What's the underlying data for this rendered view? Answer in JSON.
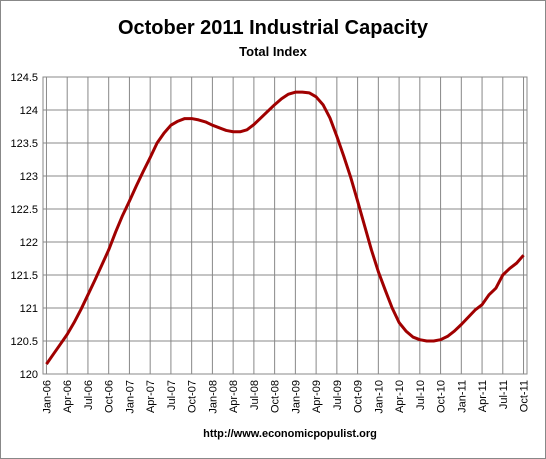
{
  "chart_data": {
    "type": "line",
    "title": "October 2011 Industrial Capacity",
    "subtitle": "Total Index",
    "source": "http://www.economicpopulist.org",
    "categories": [
      "Jan-06",
      null,
      null,
      "Apr-06",
      null,
      null,
      "Jul-06",
      null,
      null,
      "Oct-06",
      null,
      null,
      "Jan-07",
      null,
      null,
      "Apr-07",
      null,
      null,
      "Jul-07",
      null,
      null,
      "Oct-07",
      null,
      null,
      "Jan-08",
      null,
      null,
      "Apr-08",
      null,
      null,
      "Jul-08",
      null,
      null,
      "Oct-08",
      null,
      null,
      "Jan-09",
      null,
      null,
      "Apr-09",
      null,
      null,
      "Jul-09",
      null,
      null,
      "Oct-09",
      null,
      null,
      "Jan-10",
      null,
      null,
      "Apr-10",
      null,
      null,
      "Jul-10",
      null,
      null,
      "Oct-10",
      null,
      null,
      "Jan-11",
      null,
      null,
      "Apr-11",
      null,
      null,
      "Jul-11",
      null,
      null,
      "Oct-11"
    ],
    "values": [
      120.15,
      120.3,
      120.45,
      120.6,
      120.78,
      120.98,
      121.2,
      121.42,
      121.65,
      121.88,
      122.15,
      122.4,
      122.62,
      122.85,
      123.07,
      123.28,
      123.5,
      123.65,
      123.77,
      123.83,
      123.87,
      123.87,
      123.85,
      123.82,
      123.77,
      123.73,
      123.69,
      123.67,
      123.67,
      123.7,
      123.78,
      123.88,
      123.98,
      124.08,
      124.17,
      124.24,
      124.27,
      124.27,
      124.26,
      124.2,
      124.08,
      123.88,
      123.6,
      123.3,
      122.98,
      122.62,
      122.25,
      121.88,
      121.55,
      121.27,
      121.0,
      120.78,
      120.65,
      120.56,
      120.52,
      120.5,
      120.5,
      120.52,
      120.57,
      120.65,
      120.75,
      120.86,
      120.97,
      121.05,
      121.2,
      121.3,
      121.5,
      121.6,
      121.68,
      121.8
    ],
    "color": "#a00000",
    "ylim": [
      120,
      124.5
    ],
    "yticks": [
      120,
      120.5,
      121,
      121.5,
      122,
      122.5,
      123,
      123.5,
      124,
      124.5
    ],
    "grid": true
  }
}
